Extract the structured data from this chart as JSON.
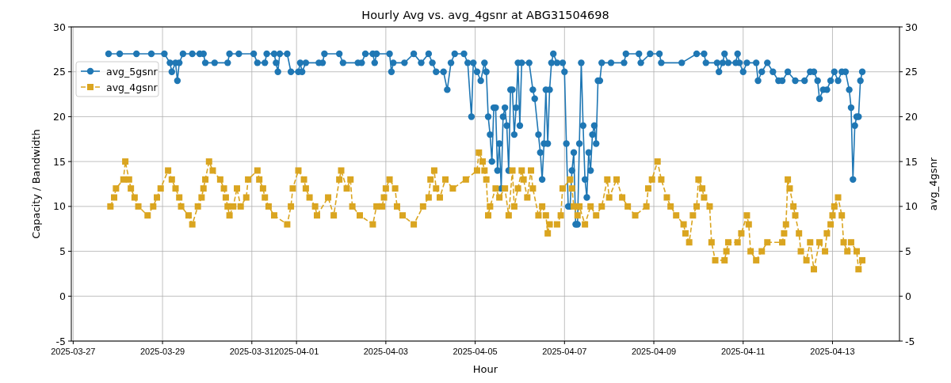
{
  "chart_data": {
    "type": "line",
    "title": "Hourly Avg vs. avg_4gsnr at ABG31504698",
    "xlabel": "Hour",
    "ylabel": "Capacity / Bandwidth",
    "y2label": "avg_4gsnr",
    "xlim": [
      "2025-03-26T23:00",
      "2025-04-14T12:00"
    ],
    "xticks": [
      "2025-03-27",
      "2025-03-29",
      "2025-03-31",
      "2025-04-01",
      "2025-04-03",
      "2025-04-05",
      "2025-04-07",
      "2025-04-09",
      "2025-04-11",
      "2025-04-13"
    ],
    "ylim": [
      -5,
      30
    ],
    "yticks": [
      -5,
      0,
      5,
      10,
      15,
      20,
      25,
      30
    ],
    "y2lim": [
      -5,
      30
    ],
    "y2ticks": [
      -5,
      0,
      5,
      10,
      15,
      20,
      25,
      30
    ],
    "grid": true,
    "legend": "top left",
    "series": [
      {
        "name": "avg_5gsnr",
        "color": "#1f77b4",
        "marker": "circle",
        "line_style": "solid",
        "x": [
          "2025-03-27T19:00",
          "2025-03-28T01:00",
          "2025-03-28T10:00",
          "2025-03-28T18:00",
          "2025-03-29T01:00",
          "2025-03-29T04:00",
          "2025-03-29T05:00",
          "2025-03-29T07:00",
          "2025-03-29T08:00",
          "2025-03-29T09:00",
          "2025-03-29T11:00",
          "2025-03-29T16:00",
          "2025-03-29T20:00",
          "2025-03-29T22:00",
          "2025-03-29T23:00",
          "2025-03-30T04:00",
          "2025-03-30T11:00",
          "2025-03-30T12:00",
          "2025-03-30T17:00",
          "2025-03-31T01:00",
          "2025-03-31T03:00",
          "2025-03-31T07:00",
          "2025-03-31T08:00",
          "2025-03-31T12:00",
          "2025-03-31T13:00",
          "2025-03-31T14:00",
          "2025-03-31T15:00",
          "2025-03-31T19:00",
          "2025-03-31T21:00",
          "2025-04-01T01:00",
          "2025-04-01T02:00",
          "2025-04-01T03:00",
          "2025-04-01T05:00",
          "2025-04-01T12:00",
          "2025-04-01T14:00",
          "2025-04-01T15:00",
          "2025-04-01T23:00",
          "2025-04-02T01:00",
          "2025-04-02T09:00",
          "2025-04-02T11:00",
          "2025-04-02T13:00",
          "2025-04-02T17:00",
          "2025-04-02T18:00",
          "2025-04-02T19:00",
          "2025-04-03T02:00",
          "2025-04-03T03:00",
          "2025-04-03T04:00",
          "2025-04-03T10:00",
          "2025-04-03T15:00",
          "2025-04-03T19:00",
          "2025-04-03T23:00",
          "2025-04-04T01:00",
          "2025-04-04T03:00",
          "2025-04-04T07:00",
          "2025-04-04T09:00",
          "2025-04-04T11:00",
          "2025-04-04T13:00",
          "2025-04-04T18:00",
          "2025-04-04T20:00",
          "2025-04-04T22:00",
          "2025-04-04T23:00",
          "2025-04-05T01:00",
          "2025-04-05T03:00",
          "2025-04-05T05:00",
          "2025-04-05T06:00",
          "2025-04-05T07:00",
          "2025-04-05T08:00",
          "2025-04-05T09:00",
          "2025-04-05T10:00",
          "2025-04-05T11:00",
          "2025-04-05T12:00",
          "2025-04-05T13:00",
          "2025-04-05T14:00",
          "2025-04-05T15:00",
          "2025-04-05T16:00",
          "2025-04-05T17:00",
          "2025-04-05T18:00",
          "2025-04-05T19:00",
          "2025-04-05T20:00",
          "2025-04-05T21:00",
          "2025-04-05T22:00",
          "2025-04-05T23:00",
          "2025-04-06T00:00",
          "2025-04-06T01:00",
          "2025-04-06T05:00",
          "2025-04-06T07:00",
          "2025-04-06T08:00",
          "2025-04-06T10:00",
          "2025-04-06T11:00",
          "2025-04-06T12:00",
          "2025-04-06T13:00",
          "2025-04-06T14:00",
          "2025-04-06T15:00",
          "2025-04-06T16:00",
          "2025-04-06T17:00",
          "2025-04-06T18:00",
          "2025-04-06T20:00",
          "2025-04-06T23:00",
          "2025-04-07T00:00",
          "2025-04-07T01:00",
          "2025-04-07T02:00",
          "2025-04-07T03:00",
          "2025-04-07T04:00",
          "2025-04-07T05:00",
          "2025-04-07T06:00",
          "2025-04-07T07:00",
          "2025-04-07T08:00",
          "2025-04-07T09:00",
          "2025-04-07T10:00",
          "2025-04-07T11:00",
          "2025-04-07T12:00",
          "2025-04-07T13:00",
          "2025-04-07T14:00",
          "2025-04-07T15:00",
          "2025-04-07T16:00",
          "2025-04-07T17:00",
          "2025-04-07T18:00",
          "2025-04-07T19:00",
          "2025-04-07T20:00",
          "2025-04-08T01:00",
          "2025-04-08T08:00",
          "2025-04-08T09:00",
          "2025-04-08T16:00",
          "2025-04-08T17:00",
          "2025-04-08T22:00",
          "2025-04-09T03:00",
          "2025-04-09T04:00",
          "2025-04-09T15:00",
          "2025-04-09T23:00",
          "2025-04-10T03:00",
          "2025-04-10T04:00",
          "2025-04-10T10:00",
          "2025-04-10T11:00",
          "2025-04-10T13:00",
          "2025-04-10T14:00",
          "2025-04-10T16:00",
          "2025-04-10T20:00",
          "2025-04-10T21:00",
          "2025-04-10T22:00",
          "2025-04-11T00:00",
          "2025-04-11T02:00",
          "2025-04-11T07:00",
          "2025-04-11T08:00",
          "2025-04-11T10:00",
          "2025-04-11T13:00",
          "2025-04-11T16:00",
          "2025-04-11T19:00",
          "2025-04-11T21:00",
          "2025-04-12T00:00",
          "2025-04-12T04:00",
          "2025-04-12T09:00",
          "2025-04-12T12:00",
          "2025-04-12T14:00",
          "2025-04-12T16:00",
          "2025-04-12T17:00",
          "2025-04-12T19:00",
          "2025-04-12T21:00",
          "2025-04-12T23:00",
          "2025-04-13T01:00",
          "2025-04-13T03:00",
          "2025-04-13T05:00",
          "2025-04-13T07:00",
          "2025-04-13T09:00",
          "2025-04-13T10:00",
          "2025-04-13T11:00",
          "2025-04-13T12:00",
          "2025-04-13T13:00",
          "2025-04-13T14:00",
          "2025-04-13T15:00",
          "2025-04-13T16:00"
        ],
        "values": [
          27,
          27,
          27,
          27,
          27,
          26,
          25,
          26,
          24,
          26,
          27,
          27,
          27,
          27,
          26,
          26,
          26,
          27,
          27,
          27,
          26,
          26,
          27,
          27,
          26,
          25,
          27,
          27,
          25,
          25,
          26,
          25,
          26,
          26,
          26,
          27,
          27,
          26,
          26,
          26,
          27,
          27,
          26,
          27,
          27,
          25,
          26,
          26,
          27,
          26,
          27,
          26,
          25,
          25,
          23,
          26,
          27,
          27,
          26,
          20,
          26,
          25,
          24,
          26,
          25,
          20,
          18,
          15,
          21,
          21,
          14,
          17,
          12,
          20,
          21,
          19,
          14,
          23,
          23,
          18,
          21,
          26,
          19,
          26,
          26,
          23,
          22,
          18,
          16,
          13,
          17,
          23,
          17,
          23,
          26,
          27,
          26,
          26,
          25,
          17,
          10,
          10,
          14,
          16,
          8,
          8,
          17,
          26,
          19,
          13,
          11,
          16,
          14,
          18,
          19,
          17,
          24,
          24,
          26,
          26,
          26,
          27,
          27,
          26,
          27,
          27,
          26,
          26,
          27,
          27,
          26,
          26,
          25,
          26,
          27,
          26,
          26,
          27,
          26,
          25,
          26,
          26,
          24,
          25,
          26,
          25,
          24,
          24,
          25,
          24,
          24,
          25,
          25,
          24,
          22,
          23,
          23,
          24,
          25,
          24,
          25,
          25,
          23,
          21,
          13,
          19,
          20,
          20,
          24,
          25
        ]
      },
      {
        "name": "avg_4gsnr",
        "color": "#daa520",
        "marker": "square",
        "line_style": "dashed",
        "x": [
          "2025-03-27T20:00",
          "2025-03-27T22:00",
          "2025-03-27T23:00",
          "2025-03-28T03:00",
          "2025-03-28T04:00",
          "2025-03-28T06:00",
          "2025-03-28T07:00",
          "2025-03-28T09:00",
          "2025-03-28T11:00",
          "2025-03-28T16:00",
          "2025-03-28T19:00",
          "2025-03-28T21:00",
          "2025-03-28T23:00",
          "2025-03-29T03:00",
          "2025-03-29T05:00",
          "2025-03-29T07:00",
          "2025-03-29T09:00",
          "2025-03-29T10:00",
          "2025-03-29T14:00",
          "2025-03-29T16:00",
          "2025-03-29T19:00",
          "2025-03-29T21:00",
          "2025-03-29T22:00",
          "2025-03-29T23:00",
          "2025-03-30T01:00",
          "2025-03-30T03:00",
          "2025-03-30T07:00",
          "2025-03-30T09:00",
          "2025-03-30T10:00",
          "2025-03-30T11:00",
          "2025-03-30T12:00",
          "2025-03-30T14:00",
          "2025-03-30T16:00",
          "2025-03-30T18:00",
          "2025-03-30T21:00",
          "2025-03-30T22:00",
          "2025-03-31T03:00",
          "2025-03-31T04:00",
          "2025-03-31T06:00",
          "2025-03-31T07:00",
          "2025-03-31T09:00",
          "2025-03-31T12:00",
          "2025-03-31T19:00",
          "2025-03-31T21:00",
          "2025-03-31T22:00",
          "2025-04-01T01:00",
          "2025-04-01T04:00",
          "2025-04-01T05:00",
          "2025-04-01T07:00",
          "2025-04-01T10:00",
          "2025-04-01T11:00",
          "2025-04-01T17:00",
          "2025-04-01T20:00",
          "2025-04-01T23:00",
          "2025-04-02T00:00",
          "2025-04-02T03:00",
          "2025-04-02T05:00",
          "2025-04-02T06:00",
          "2025-04-02T10:00",
          "2025-04-02T17:00",
          "2025-04-02T19:00",
          "2025-04-02T22:00",
          "2025-04-02T23:00",
          "2025-04-03T00:00",
          "2025-04-03T02:00",
          "2025-04-03T05:00",
          "2025-04-03T06:00",
          "2025-04-03T09:00",
          "2025-04-03T15:00",
          "2025-04-03T20:00",
          "2025-04-03T23:00",
          "2025-04-04T00:00",
          "2025-04-04T02:00",
          "2025-04-04T03:00",
          "2025-04-04T05:00",
          "2025-04-04T08:00",
          "2025-04-04T12:00",
          "2025-04-04T19:00",
          "2025-04-05T01:00",
          "2025-04-05T02:00",
          "2025-04-05T04:00",
          "2025-04-05T05:00",
          "2025-04-05T06:00",
          "2025-04-05T07:00",
          "2025-04-05T08:00",
          "2025-04-05T11:00",
          "2025-04-05T13:00",
          "2025-04-05T16:00",
          "2025-04-05T18:00",
          "2025-04-05T20:00",
          "2025-04-05T21:00",
          "2025-04-05T23:00",
          "2025-04-06T01:00",
          "2025-04-06T02:00",
          "2025-04-06T04:00",
          "2025-04-06T06:00",
          "2025-04-06T07:00",
          "2025-04-06T10:00",
          "2025-04-06T12:00",
          "2025-04-06T14:00",
          "2025-04-06T15:00",
          "2025-04-06T16:00",
          "2025-04-06T20:00",
          "2025-04-06T22:00",
          "2025-04-06T23:00",
          "2025-04-07T03:00",
          "2025-04-07T04:00",
          "2025-04-07T05:00",
          "2025-04-07T07:00",
          "2025-04-07T08:00",
          "2025-04-07T11:00",
          "2025-04-07T14:00",
          "2025-04-07T17:00",
          "2025-04-07T20:00",
          "2025-04-07T23:00",
          "2025-04-08T00:00",
          "2025-04-08T04:00",
          "2025-04-08T07:00",
          "2025-04-08T10:00",
          "2025-04-08T14:00",
          "2025-04-08T20:00",
          "2025-04-08T21:00",
          "2025-04-08T23:00",
          "2025-04-09T02:00",
          "2025-04-09T04:00",
          "2025-04-09T07:00",
          "2025-04-09T09:00",
          "2025-04-09T12:00",
          "2025-04-09T16:00",
          "2025-04-09T17:00",
          "2025-04-09T19:00",
          "2025-04-09T21:00",
          "2025-04-09T23:00",
          "2025-04-10T00:00",
          "2025-04-10T02:00",
          "2025-04-10T03:00",
          "2025-04-10T06:00",
          "2025-04-10T07:00",
          "2025-04-10T09:00",
          "2025-04-10T14:00",
          "2025-04-10T15:00",
          "2025-04-10T16:00",
          "2025-04-10T21:00",
          "2025-04-10T23:00",
          "2025-04-11T02:00",
          "2025-04-11T03:00",
          "2025-04-11T04:00",
          "2025-04-11T07:00",
          "2025-04-11T10:00",
          "2025-04-11T13:00",
          "2025-04-11T21:00",
          "2025-04-11T22:00",
          "2025-04-11T23:00",
          "2025-04-12T00:00",
          "2025-04-12T01:00",
          "2025-04-12T03:00",
          "2025-04-12T04:00",
          "2025-04-12T06:00",
          "2025-04-12T07:00",
          "2025-04-12T10:00",
          "2025-04-12T12:00",
          "2025-04-12T14:00",
          "2025-04-12T17:00",
          "2025-04-12T20:00",
          "2025-04-12T21:00",
          "2025-04-12T23:00",
          "2025-04-13T00:00",
          "2025-04-13T01:00",
          "2025-04-13T03:00",
          "2025-04-13T05:00",
          "2025-04-13T06:00",
          "2025-04-13T08:00",
          "2025-04-13T10:00",
          "2025-04-13T13:00",
          "2025-04-13T14:00",
          "2025-04-13T16:00"
        ],
        "values": [
          10,
          11,
          12,
          13,
          15,
          13,
          12,
          11,
          10,
          9,
          10,
          11,
          12,
          14,
          13,
          12,
          11,
          10,
          9,
          8,
          10,
          11,
          12,
          13,
          15,
          14,
          13,
          12,
          11,
          10,
          9,
          10,
          12,
          10,
          11,
          13,
          14,
          13,
          12,
          11,
          10,
          9,
          8,
          10,
          12,
          14,
          13,
          12,
          11,
          10,
          9,
          11,
          9,
          13,
          14,
          12,
          13,
          10,
          9,
          8,
          10,
          10,
          11,
          12,
          13,
          12,
          10,
          9,
          8,
          10,
          11,
          13,
          14,
          12,
          11,
          13,
          12,
          13,
          14,
          16,
          15,
          14,
          13,
          9,
          10,
          12,
          11,
          12,
          9,
          14,
          10,
          12,
          14,
          13,
          11,
          14,
          12,
          9,
          10,
          9,
          7,
          8,
          8,
          9,
          12,
          13,
          12,
          10,
          9,
          10,
          8,
          10,
          9,
          10,
          13,
          11,
          13,
          11,
          10,
          9,
          10,
          12,
          13,
          15,
          13,
          11,
          10,
          9,
          8,
          7,
          6,
          9,
          10,
          13,
          12,
          11,
          10,
          6,
          4,
          4,
          5,
          6,
          6,
          7,
          9,
          8,
          5,
          4,
          5,
          6,
          6,
          7,
          8,
          13,
          12,
          10,
          9,
          7,
          5,
          4,
          6,
          3,
          6,
          5,
          7,
          8,
          9,
          10,
          11,
          9,
          6,
          5,
          6,
          5,
          3,
          4
        ]
      }
    ]
  }
}
